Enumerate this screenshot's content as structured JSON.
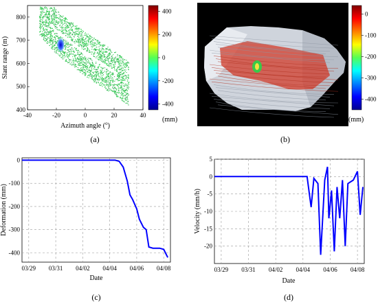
{
  "chart_data": [
    {
      "panel": "(a)",
      "type": "scatter",
      "xlabel": "Azimuth angle (°)",
      "ylabel": "Slant range (m)",
      "xlim": [
        -40,
        40
      ],
      "ylim": [
        400,
        850
      ],
      "xticks": [
        "-40",
        "-20",
        "0",
        "20",
        "40"
      ],
      "yticks": [
        "400",
        "500",
        "600",
        "700",
        "800"
      ],
      "colorbar": {
        "ticks": [
          "400",
          "200",
          "0",
          "-200",
          "-400"
        ],
        "unit": "(mm)",
        "range": [
          -450,
          450
        ]
      },
      "description_points": {
        "band_centerline": [
          [
            -32,
            820
          ],
          [
            -20,
            735
          ],
          [
            0,
            640
          ],
          [
            20,
            560
          ],
          [
            30,
            515
          ]
        ],
        "deformation_spot": {
          "x": -17,
          "y": 680,
          "value": -400
        }
      },
      "caption": "(a)"
    },
    {
      "panel": "(b)",
      "type": "heatmap",
      "colorbar": {
        "ticks": [
          "0",
          "-100",
          "-200",
          "-300",
          "-400"
        ],
        "unit": "(mm)",
        "range": [
          -450,
          40
        ]
      },
      "caption": "(b)"
    },
    {
      "panel": "(c)",
      "type": "line",
      "xlabel": "Date",
      "ylabel": "Deformation (mm)",
      "xticks": [
        "03/29",
        "03/31",
        "04/02",
        "04/04",
        "04/06",
        "04/08"
      ],
      "xlim": [
        0,
        11
      ],
      "ylim": [
        -440,
        10
      ],
      "yticks": [
        "0",
        "-100",
        "-200",
        "-300",
        "-400"
      ],
      "series": [
        {
          "values": [
            [
              0,
              0
            ],
            [
              6.9,
              0
            ],
            [
              7.2,
              -5
            ],
            [
              7.5,
              -30
            ],
            [
              7.8,
              -90
            ],
            [
              8.0,
              -150
            ],
            [
              8.2,
              -170
            ],
            [
              8.5,
              -210
            ],
            [
              8.7,
              -255
            ],
            [
              9.0,
              -290
            ],
            [
              9.2,
              -300
            ],
            [
              9.4,
              -375
            ],
            [
              9.7,
              -380
            ],
            [
              10.2,
              -380
            ],
            [
              10.5,
              -385
            ],
            [
              10.8,
              -420
            ]
          ],
          "color": "#0000ff"
        }
      ],
      "caption": "(c)"
    },
    {
      "panel": "(d)",
      "type": "line",
      "xlabel": "Date",
      "ylabel": "Velocity (mm/h)",
      "xticks": [
        "03/29",
        "03/31",
        "04/02",
        "04/04",
        "04/06",
        "04/08"
      ],
      "xlim": [
        0,
        11
      ],
      "ylim": [
        -25,
        5
      ],
      "yticks": [
        "5",
        "0",
        "-5",
        "-10",
        "-15",
        "-20"
      ],
      "series": [
        {
          "values": [
            [
              0,
              0
            ],
            [
              2,
              0
            ],
            [
              4,
              0
            ],
            [
              6,
              0
            ],
            [
              6.8,
              0
            ],
            [
              7.1,
              -8.8
            ],
            [
              7.3,
              -0.5
            ],
            [
              7.6,
              -2
            ],
            [
              7.8,
              -22.5
            ],
            [
              8.1,
              -1
            ],
            [
              8.3,
              2.8
            ],
            [
              8.4,
              -12
            ],
            [
              8.6,
              -4
            ],
            [
              8.8,
              -21.5
            ],
            [
              9.0,
              -3
            ],
            [
              9.2,
              -12
            ],
            [
              9.4,
              -1
            ],
            [
              9.6,
              -20
            ],
            [
              9.8,
              -2
            ],
            [
              10.2,
              -1
            ],
            [
              10.5,
              1.5
            ],
            [
              10.7,
              -11
            ],
            [
              10.9,
              -3
            ]
          ],
          "color": "#0000ff"
        }
      ],
      "caption": "(d)"
    }
  ]
}
